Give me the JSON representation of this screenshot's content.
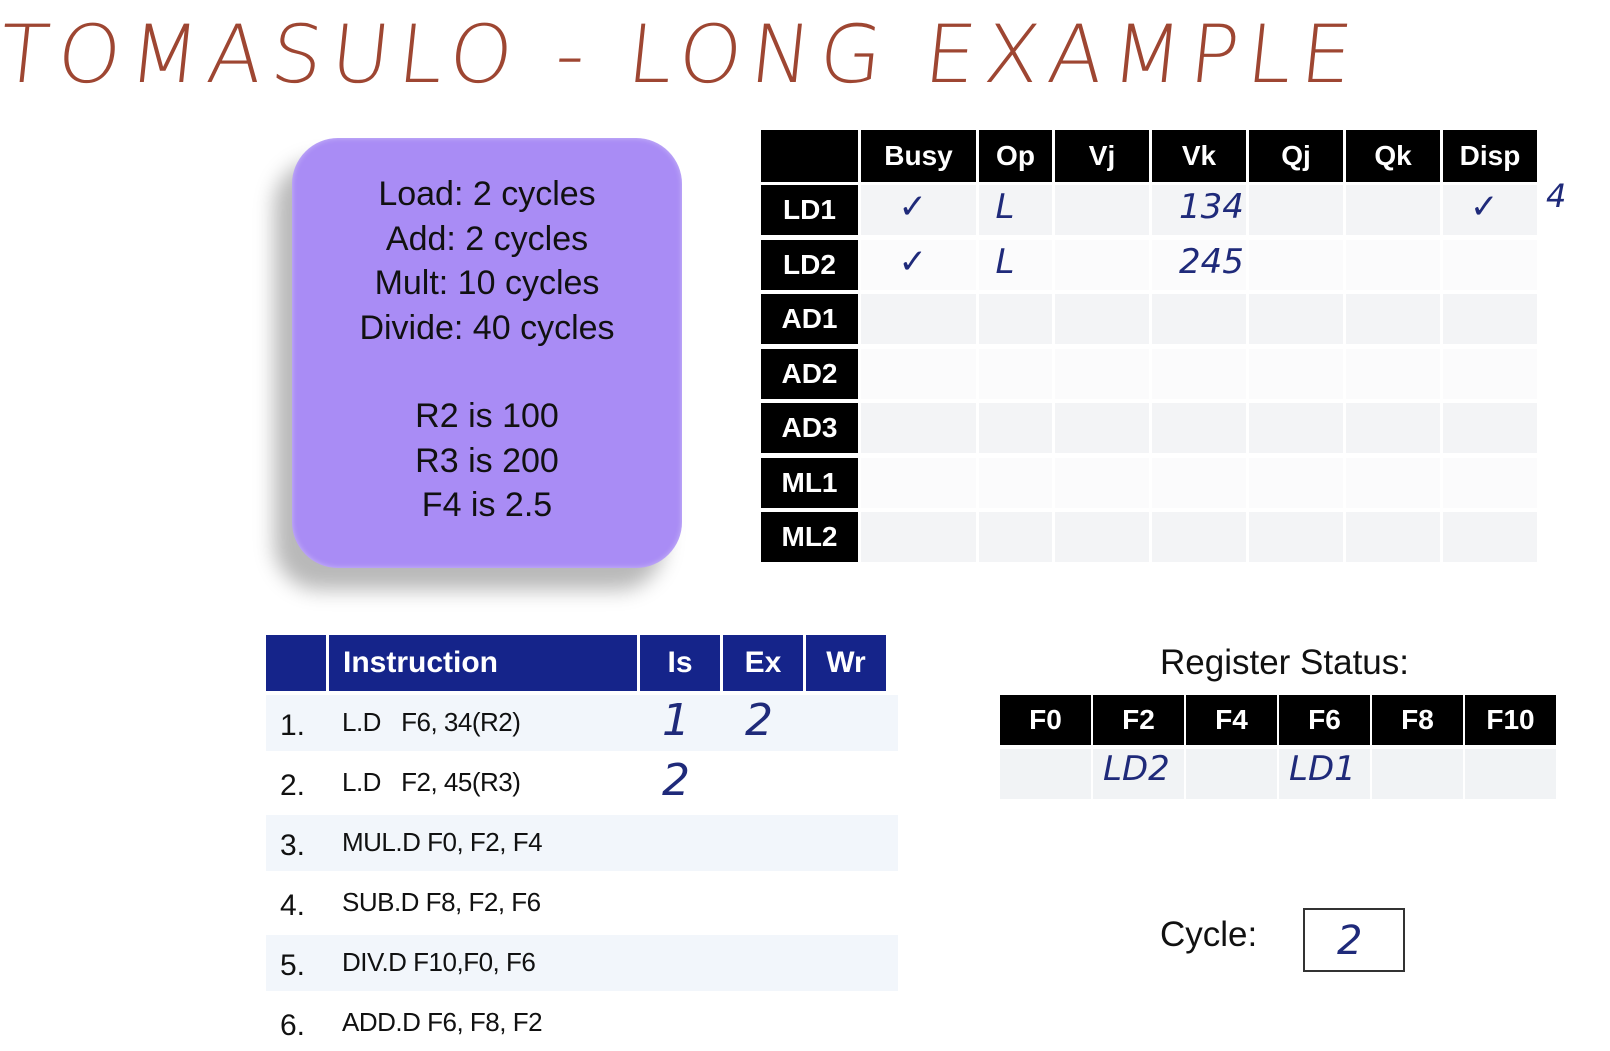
{
  "title": "TOMASULO - LONG EXAMPLE",
  "info": {
    "latencies": [
      "Load: 2 cycles",
      "Add: 2 cycles",
      "Mult: 10 cycles",
      "Divide: 40 cycles"
    ],
    "initial_values": [
      "R2 is 100",
      "R3 is 200",
      "F4 is 2.5"
    ]
  },
  "reservation_stations": {
    "columns": [
      "Busy",
      "Op",
      "Vj",
      "Vk",
      "Qj",
      "Qk",
      "Disp"
    ],
    "rows": [
      {
        "name": "LD1",
        "busy": "✓",
        "op": "L",
        "vj": "",
        "vk": "134",
        "qj": "",
        "qk": "",
        "disp": "✓",
        "note": "4"
      },
      {
        "name": "LD2",
        "busy": "✓",
        "op": "L",
        "vj": "",
        "vk": "245",
        "qj": "",
        "qk": "",
        "disp": "",
        "note": ""
      },
      {
        "name": "AD1",
        "busy": "",
        "op": "",
        "vj": "",
        "vk": "",
        "qj": "",
        "qk": "",
        "disp": "",
        "note": ""
      },
      {
        "name": "AD2",
        "busy": "",
        "op": "",
        "vj": "",
        "vk": "",
        "qj": "",
        "qk": "",
        "disp": "",
        "note": ""
      },
      {
        "name": "AD3",
        "busy": "",
        "op": "",
        "vj": "",
        "vk": "",
        "qj": "",
        "qk": "",
        "disp": "",
        "note": ""
      },
      {
        "name": "ML1",
        "busy": "",
        "op": "",
        "vj": "",
        "vk": "",
        "qj": "",
        "qk": "",
        "disp": "",
        "note": ""
      },
      {
        "name": "ML2",
        "busy": "",
        "op": "",
        "vj": "",
        "vk": "",
        "qj": "",
        "qk": "",
        "disp": "",
        "note": ""
      }
    ]
  },
  "instructions": {
    "columns": [
      "Instruction",
      "Is",
      "Ex",
      "Wr"
    ],
    "rows": [
      {
        "num": "1.",
        "text": "L.D   F6, 34(R2)",
        "is": "1",
        "ex": "2",
        "wr": ""
      },
      {
        "num": "2.",
        "text": "L.D   F2, 45(R3)",
        "is": "2",
        "ex": "",
        "wr": ""
      },
      {
        "num": "3.",
        "text": "MUL.D F0, F2, F4",
        "is": "",
        "ex": "",
        "wr": ""
      },
      {
        "num": "4.",
        "text": "SUB.D F8, F2, F6",
        "is": "",
        "ex": "",
        "wr": ""
      },
      {
        "num": "5.",
        "text": "DIV.D F10,F0, F6",
        "is": "",
        "ex": "",
        "wr": ""
      },
      {
        "num": "6.",
        "text": "ADD.D F6, F8, F2",
        "is": "",
        "ex": "",
        "wr": ""
      }
    ]
  },
  "register_status": {
    "label": "Register Status:",
    "registers": [
      "F0",
      "F2",
      "F4",
      "F6",
      "F8",
      "F10"
    ],
    "values": [
      "",
      "LD2",
      "",
      "LD1",
      "",
      ""
    ]
  },
  "cycle": {
    "label": "Cycle:",
    "value": "2"
  },
  "colors": {
    "title": "#9e4632",
    "info_box": "#a98cf5",
    "instruction_header": "#15248a",
    "handwriting": "#1f2a7a"
  }
}
